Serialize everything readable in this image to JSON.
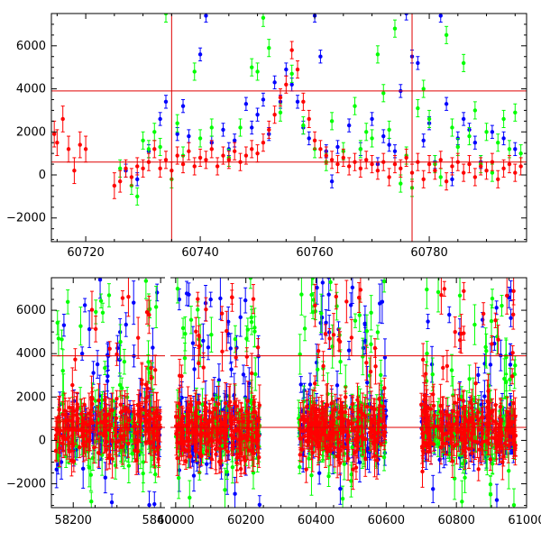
{
  "chart_data": [
    {
      "type": "scatter",
      "panel": "top",
      "title": "",
      "xlabel": "",
      "ylabel": "",
      "xlim": [
        60714,
        60797
      ],
      "ylim": [
        -3100,
        7500
      ],
      "x_ticks": [
        60720,
        60740,
        60760,
        60780
      ],
      "y_ticks": [
        -2000,
        0,
        2000,
        4000,
        6000
      ],
      "x_tick_labels": [
        "60720",
        "60740",
        "60760",
        "60780"
      ],
      "y_tick_labels": [
        "−2000",
        "0",
        "2000",
        "4000",
        "6000"
      ],
      "hlines": [
        600,
        3900
      ],
      "vlines": [
        60735,
        60777
      ],
      "grid": false,
      "series": [
        {
          "color": "#0000ff",
          "points": [
            [
              60727,
              200,
              300
            ],
            [
              60729,
              -200,
              300
            ],
            [
              60731,
              1100,
              300
            ],
            [
              60733,
              2600,
              300
            ],
            [
              60734,
              3400,
              300
            ],
            [
              60736,
              1900,
              300
            ],
            [
              60737,
              3200,
              300
            ],
            [
              60738,
              1800,
              300
            ],
            [
              60740,
              5600,
              300
            ],
            [
              60741,
              7400,
              300
            ],
            [
              60742,
              1500,
              300
            ],
            [
              60744,
              2100,
              300
            ],
            [
              60745,
              1200,
              300
            ],
            [
              60746,
              1600,
              300
            ],
            [
              60748,
              3300,
              300
            ],
            [
              60749,
              2200,
              300
            ],
            [
              60750,
              2800,
              300
            ],
            [
              60751,
              3500,
              300
            ],
            [
              60752,
              1900,
              300
            ],
            [
              60753,
              4300,
              300
            ],
            [
              60754,
              3400,
              300
            ],
            [
              60755,
              4900,
              300
            ],
            [
              60756,
              4200,
              300
            ],
            [
              60757,
              3400,
              300
            ],
            [
              60758,
              2200,
              300
            ],
            [
              60759,
              1700,
              300
            ],
            [
              60760,
              7400,
              300
            ],
            [
              60761,
              5500,
              300
            ],
            [
              60762,
              1100,
              300
            ],
            [
              60763,
              -300,
              300
            ],
            [
              60764,
              1300,
              300
            ],
            [
              60766,
              2300,
              300
            ],
            [
              60768,
              1200,
              300
            ],
            [
              60770,
              2600,
              300
            ],
            [
              60771,
              500,
              300
            ],
            [
              60772,
              1800,
              300
            ],
            [
              60773,
              1400,
              300
            ],
            [
              60774,
              1100,
              300
            ],
            [
              60775,
              3900,
              300
            ],
            [
              60776,
              7500,
              300
            ],
            [
              60777,
              5500,
              300
            ],
            [
              60778,
              5200,
              300
            ],
            [
              60779,
              1600,
              300
            ],
            [
              60780,
              2400,
              300
            ],
            [
              60781,
              600,
              300
            ],
            [
              60782,
              7400,
              300
            ],
            [
              60783,
              3300,
              300
            ],
            [
              60784,
              -200,
              300
            ],
            [
              60785,
              1700,
              300
            ],
            [
              60786,
              2600,
              300
            ],
            [
              60787,
              2100,
              300
            ],
            [
              60788,
              1500,
              300
            ],
            [
              60789,
              600,
              300
            ],
            [
              60791,
              2000,
              300
            ],
            [
              60793,
              1700,
              300
            ],
            [
              60795,
              1200,
              300
            ]
          ]
        },
        {
          "color": "#00ff00",
          "points": [
            [
              60726,
              300,
              400
            ],
            [
              60728,
              -500,
              400
            ],
            [
              60729,
              -1000,
              400
            ],
            [
              60730,
              1600,
              400
            ],
            [
              60731,
              1200,
              400
            ],
            [
              60732,
              2000,
              400
            ],
            [
              60733,
              1300,
              400
            ],
            [
              60734,
              7500,
              400
            ],
            [
              60735,
              -200,
              400
            ],
            [
              60736,
              2400,
              400
            ],
            [
              60737,
              900,
              400
            ],
            [
              60739,
              4800,
              400
            ],
            [
              60740,
              1700,
              400
            ],
            [
              60742,
              2200,
              400
            ],
            [
              60745,
              800,
              400
            ],
            [
              60747,
              2200,
              400
            ],
            [
              60749,
              5000,
              400
            ],
            [
              60750,
              4800,
              400
            ],
            [
              60751,
              7300,
              400
            ],
            [
              60752,
              5900,
              400
            ],
            [
              60754,
              2900,
              400
            ],
            [
              60756,
              4700,
              400
            ],
            [
              60758,
              2300,
              400
            ],
            [
              60760,
              1200,
              400
            ],
            [
              60762,
              600,
              400
            ],
            [
              60763,
              2500,
              400
            ],
            [
              60765,
              1100,
              400
            ],
            [
              60767,
              3200,
              400
            ],
            [
              60768,
              1200,
              400
            ],
            [
              60769,
              2000,
              400
            ],
            [
              60770,
              1700,
              400
            ],
            [
              60771,
              5600,
              400
            ],
            [
              60772,
              3800,
              400
            ],
            [
              60773,
              2100,
              400
            ],
            [
              60774,
              6800,
              400
            ],
            [
              60775,
              -400,
              400
            ],
            [
              60776,
              900,
              400
            ],
            [
              60777,
              -600,
              400
            ],
            [
              60778,
              3100,
              400
            ],
            [
              60779,
              4000,
              400
            ],
            [
              60780,
              2600,
              400
            ],
            [
              60781,
              500,
              400
            ],
            [
              60782,
              -100,
              400
            ],
            [
              60783,
              6500,
              400
            ],
            [
              60784,
              2200,
              400
            ],
            [
              60785,
              1300,
              400
            ],
            [
              60786,
              5200,
              400
            ],
            [
              60787,
              1800,
              400
            ],
            [
              60788,
              3000,
              400
            ],
            [
              60789,
              500,
              400
            ],
            [
              60790,
              2000,
              400
            ],
            [
              60791,
              100,
              400
            ],
            [
              60792,
              1500,
              400
            ],
            [
              60793,
              2600,
              400
            ],
            [
              60794,
              1200,
              400
            ],
            [
              60795,
              2900,
              400
            ],
            [
              60796,
              1000,
              400
            ]
          ]
        },
        {
          "color": "#ff0000",
          "points": [
            [
              60714.5,
              1900,
              600
            ],
            [
              60715,
              1500,
              600
            ],
            [
              60716,
              2600,
              600
            ],
            [
              60717,
              1200,
              600
            ],
            [
              60718,
              200,
              600
            ],
            [
              60719,
              1400,
              600
            ],
            [
              60720,
              1200,
              600
            ],
            [
              60725,
              -500,
              600
            ],
            [
              60726,
              -300,
              500
            ],
            [
              60727,
              300,
              400
            ],
            [
              60728,
              -100,
              400
            ],
            [
              60729,
              400,
              400
            ],
            [
              60730,
              300,
              400
            ],
            [
              60731,
              600,
              400
            ],
            [
              60732,
              1200,
              400
            ],
            [
              60733,
              300,
              400
            ],
            [
              60734,
              700,
              400
            ],
            [
              60735,
              200,
              400
            ],
            [
              60736,
              900,
              400
            ],
            [
              60737,
              500,
              400
            ],
            [
              60738,
              1100,
              400
            ],
            [
              60739,
              400,
              400
            ],
            [
              60740,
              800,
              400
            ],
            [
              60741,
              700,
              400
            ],
            [
              60742,
              1200,
              400
            ],
            [
              60743,
              400,
              400
            ],
            [
              60744,
              900,
              400
            ],
            [
              60745,
              700,
              400
            ],
            [
              60746,
              1100,
              400
            ],
            [
              60747,
              600,
              400
            ],
            [
              60748,
              900,
              400
            ],
            [
              60749,
              1200,
              400
            ],
            [
              60750,
              1000,
              400
            ],
            [
              60751,
              1500,
              400
            ],
            [
              60752,
              2100,
              400
            ],
            [
              60753,
              2800,
              400
            ],
            [
              60754,
              3600,
              400
            ],
            [
              60755,
              4200,
              400
            ],
            [
              60756,
              5800,
              400
            ],
            [
              60757,
              4900,
              400
            ],
            [
              60758,
              3400,
              400
            ],
            [
              60759,
              2600,
              400
            ],
            [
              60760,
              1600,
              400
            ],
            [
              60761,
              1200,
              400
            ],
            [
              60762,
              900,
              400
            ],
            [
              60763,
              700,
              400
            ],
            [
              60764,
              500,
              400
            ],
            [
              60765,
              800,
              400
            ],
            [
              60766,
              400,
              400
            ],
            [
              60767,
              600,
              400
            ],
            [
              60768,
              300,
              400
            ],
            [
              60769,
              700,
              400
            ],
            [
              60770,
              500,
              400
            ],
            [
              60771,
              200,
              400
            ],
            [
              60772,
              600,
              400
            ],
            [
              60773,
              -100,
              400
            ],
            [
              60774,
              500,
              400
            ],
            [
              60775,
              300,
              400
            ],
            [
              60776,
              800,
              400
            ],
            [
              60777,
              100,
              400
            ],
            [
              60778,
              600,
              400
            ],
            [
              60779,
              -200,
              400
            ],
            [
              60780,
              500,
              400
            ],
            [
              60781,
              200,
              400
            ],
            [
              60782,
              700,
              400
            ],
            [
              60783,
              -300,
              400
            ],
            [
              60784,
              400,
              400
            ],
            [
              60785,
              600,
              400
            ],
            [
              60786,
              100,
              400
            ],
            [
              60787,
              500,
              400
            ],
            [
              60788,
              -100,
              400
            ],
            [
              60789,
              400,
              400
            ],
            [
              60790,
              200,
              400
            ],
            [
              60791,
              600,
              400
            ],
            [
              60792,
              -200,
              400
            ],
            [
              60793,
              300,
              400
            ],
            [
              60794,
              500,
              400
            ],
            [
              60795,
              100,
              400
            ],
            [
              60796,
              400,
              400
            ]
          ]
        }
      ]
    },
    {
      "type": "scatter",
      "panel": "bottom",
      "title": "",
      "xlabel": "",
      "ylabel": "",
      "ylim": [
        -3100,
        7500
      ],
      "y_ticks": [
        -2000,
        0,
        2000,
        4000,
        6000
      ],
      "y_tick_labels": [
        "−2000",
        "0",
        "2000",
        "4000",
        "6000"
      ],
      "hlines": [
        600,
        3900
      ],
      "broken_x_axis": true,
      "segments": [
        {
          "xlim": [
            58150,
            58410
          ],
          "x_ticks": [
            58200,
            58400
          ],
          "x_tick_labels": [
            "58200",
            "58400"
          ],
          "data_range": [
            58160,
            58400
          ]
        },
        {
          "xlim": [
            59985,
            61000
          ],
          "x_ticks": [
            60000,
            60200,
            60400,
            60600,
            60800,
            61000
          ],
          "x_tick_labels": [
            "60000",
            "60200",
            "60400",
            "60600",
            "60800",
            "61000"
          ],
          "data_ranges": [
            [
              60000,
              60240
            ],
            [
              60350,
              60600
            ],
            [
              60700,
              60970
            ]
          ]
        }
      ],
      "series_colors": [
        "#0000ff",
        "#00ff00",
        "#ff0000"
      ],
      "dense_cloud": {
        "core_range": [
          -1000,
          2800
        ],
        "core_center": 500,
        "outlier_range": [
          -3000,
          7500
        ],
        "points_per_season": 130
      },
      "grid": false
    }
  ]
}
